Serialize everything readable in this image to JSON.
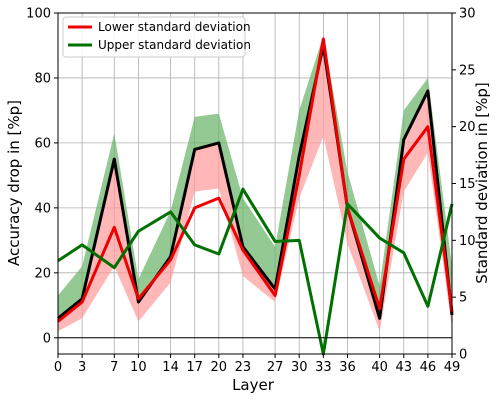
{
  "chart_data": {
    "type": "line",
    "x": [
      0,
      3,
      7,
      10,
      14,
      17,
      20,
      23,
      27,
      30,
      33,
      36,
      40,
      43,
      46,
      49
    ],
    "xlabel": "Layer",
    "ylabel_left": "Accuracy drop in [%p]",
    "ylabel_right": "Standard deviation in [%p]",
    "ylim_left": [
      -5,
      100
    ],
    "ylim_right": [
      0,
      30
    ],
    "x_ticks": [
      "0",
      "3",
      "7",
      "10",
      "14",
      "17",
      "20",
      "23",
      "27",
      "30",
      "33",
      "36",
      "40",
      "43",
      "46",
      "49"
    ],
    "y_ticks_left": [
      "0",
      "20",
      "40",
      "60",
      "80",
      "100"
    ],
    "y_ticks_right": [
      "0",
      "5",
      "10",
      "15",
      "20",
      "25",
      "30"
    ],
    "grid": true,
    "legend_position": "top-left",
    "mean": {
      "color": "#000000",
      "values": [
        6,
        12,
        55,
        11,
        25,
        58,
        60,
        28,
        15,
        56,
        90,
        40,
        6,
        61,
        76,
        7
      ]
    },
    "lower_band": {
      "color": "#ff9999",
      "upper": [
        6,
        12,
        55,
        11,
        25,
        58,
        60,
        28,
        15,
        56,
        90,
        40,
        6,
        61,
        76,
        7
      ],
      "lower": [
        2,
        6,
        22,
        5,
        17,
        45,
        46,
        19,
        11,
        43,
        62,
        29,
        2,
        45,
        57,
        3
      ]
    },
    "upper_band": {
      "color": "#66b266",
      "upper": [
        13,
        22,
        63,
        18,
        39,
        68,
        69,
        43,
        28,
        70,
        93,
        51,
        16,
        70,
        80,
        22
      ],
      "lower": [
        6,
        12,
        55,
        11,
        25,
        58,
        60,
        28,
        15,
        56,
        90,
        40,
        6,
        61,
        76,
        7
      ]
    },
    "series": [
      {
        "name": "Lower standard deviation",
        "axis": "left",
        "color": "#ee0000",
        "values": [
          5,
          11,
          34,
          12,
          24,
          40,
          43,
          27,
          13,
          50,
          92,
          40,
          9,
          55,
          65,
          8
        ]
      },
      {
        "name": "Upper standard deviation",
        "axis": "right",
        "color": "#007000",
        "values": [
          8.2,
          9.6,
          7.6,
          10.8,
          12.5,
          9.6,
          8.8,
          14.5,
          9.9,
          10,
          0,
          13.2,
          10.2,
          8.9,
          4.2,
          13.2
        ]
      }
    ]
  }
}
